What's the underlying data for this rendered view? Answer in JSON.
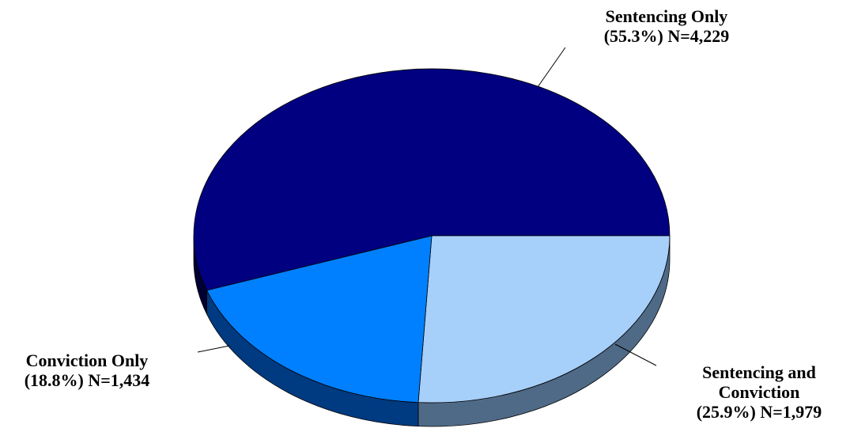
{
  "chart_data": {
    "type": "pie",
    "style": "3d",
    "slices": [
      {
        "name": "Sentencing Only",
        "percent": 55.3,
        "n": 4229,
        "pct_label": "(55.3%) N=4,229",
        "color": "#000080"
      },
      {
        "name": "Sentencing and",
        "name2": "Conviction",
        "percent": 25.9,
        "n": 1979,
        "pct_label": "(25.9%) N=1,979",
        "color": "#a6cff9"
      },
      {
        "name": "Conviction Only",
        "percent": 18.8,
        "n": 1434,
        "pct_label": "(18.8%) N=1,434",
        "color": "#0080ff"
      }
    ]
  }
}
